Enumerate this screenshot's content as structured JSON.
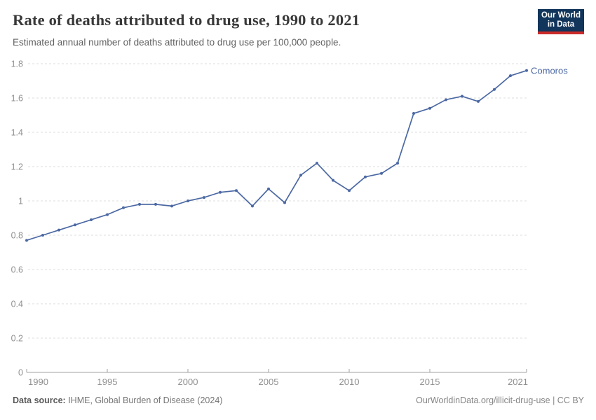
{
  "header": {
    "title": "Rate of deaths attributed to drug use, 1990 to 2021",
    "subtitle": "Estimated annual number of deaths attributed to drug use per 100,000 people.",
    "logo": {
      "line1": "Our World",
      "line2": "in Data"
    }
  },
  "colors": {
    "series_line": "#4B68A3",
    "logo_bg": "#12355B",
    "logo_accent": "#CC2B29",
    "grid": "#DCDCDC",
    "axis": "#A0A0A0",
    "tick_label": "#8F8F8F",
    "title_text": "#383838"
  },
  "chart_data": {
    "type": "line",
    "title": "Rate of deaths attributed to drug use, 1990 to 2021",
    "subtitle": "Estimated annual number of deaths attributed to drug use per 100,000 people.",
    "xlabel": "",
    "ylabel": "",
    "xlim": [
      1990,
      2021
    ],
    "ylim": [
      0,
      1.8
    ],
    "x_ticks": [
      1990,
      1995,
      2000,
      2005,
      2010,
      2015,
      2021
    ],
    "y_ticks": [
      0,
      0.2,
      0.4,
      0.6,
      0.8,
      1,
      1.2,
      1.4,
      1.6,
      1.8
    ],
    "grid": "horizontal-dashed",
    "legend_position": "end-of-line-label",
    "series": [
      {
        "name": "Comoros",
        "x": [
          1990,
          1991,
          1992,
          1993,
          1994,
          1995,
          1996,
          1997,
          1998,
          1999,
          2000,
          2001,
          2002,
          2003,
          2004,
          2005,
          2006,
          2007,
          2008,
          2009,
          2010,
          2011,
          2012,
          2013,
          2014,
          2015,
          2016,
          2017,
          2018,
          2019,
          2020,
          2021
        ],
        "values": [
          0.77,
          0.8,
          0.83,
          0.86,
          0.89,
          0.92,
          0.96,
          0.98,
          0.98,
          0.97,
          1.0,
          1.02,
          1.05,
          1.06,
          0.97,
          1.07,
          0.99,
          1.15,
          1.22,
          1.12,
          1.06,
          1.14,
          1.16,
          1.22,
          1.51,
          1.54,
          1.59,
          1.61,
          1.58,
          1.65,
          1.73,
          1.76
        ]
      }
    ]
  },
  "footer": {
    "source_label": "Data source:",
    "source_text": " IHME, Global Burden of Disease (2024)",
    "link_text": "OurWorldinData.org/illicit-drug-use | CC BY"
  }
}
